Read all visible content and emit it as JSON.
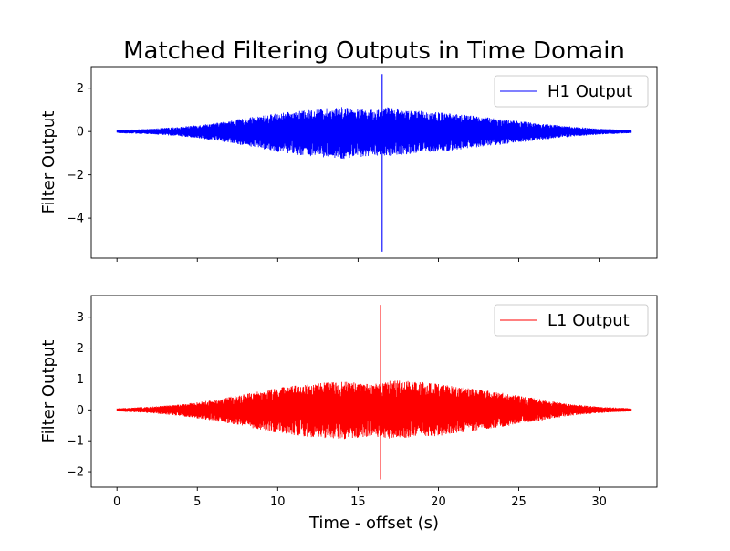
{
  "figure": {
    "title": "Matched Filtering Outputs in Time Domain"
  },
  "chart_data": [
    {
      "type": "line",
      "title": "",
      "xlabel": "",
      "ylabel": "Filter Output",
      "xlim": [
        -1.6,
        33.6
      ],
      "ylim": [
        -5.85,
        3.0
      ],
      "xticks": [
        0,
        5,
        10,
        15,
        20,
        25,
        30
      ],
      "yticks": [
        -4,
        -2,
        0,
        2
      ],
      "ytick_labels": [
        "−4",
        "−2",
        "0",
        "2"
      ],
      "show_xtick_labels": false,
      "grid": false,
      "legend": {
        "placement": "top-right",
        "entries": [
          "H1 Output"
        ]
      },
      "series": [
        {
          "name": "H1 Output",
          "color": "#0000ff",
          "envelope": {
            "x": [
              0,
              2,
              4,
              6,
              8,
              10,
              12,
              14,
              15,
              16,
              17,
              18,
              20,
              22,
              24,
              26,
              28,
              30,
              32
            ],
            "max": [
              0.07,
              0.12,
              0.22,
              0.38,
              0.62,
              0.85,
              1.0,
              1.15,
              1.05,
              1.0,
              1.15,
              1.0,
              0.9,
              0.75,
              0.58,
              0.4,
              0.25,
              0.13,
              0.07
            ],
            "min": [
              -0.07,
              -0.12,
              -0.22,
              -0.4,
              -0.65,
              -0.95,
              -1.15,
              -1.3,
              -1.2,
              -1.1,
              -1.15,
              -1.05,
              -0.95,
              -0.78,
              -0.6,
              -0.42,
              -0.26,
              -0.14,
              -0.07
            ]
          },
          "spike": {
            "x": 16.5,
            "max": 2.65,
            "min": -5.55
          }
        }
      ]
    },
    {
      "type": "line",
      "title": "",
      "xlabel": "Time - offset (s)",
      "ylabel": "Filter Output",
      "xlim": [
        -1.6,
        33.6
      ],
      "ylim": [
        -2.5,
        3.7
      ],
      "xticks": [
        0,
        5,
        10,
        15,
        20,
        25,
        30
      ],
      "xtick_labels": [
        "0",
        "5",
        "10",
        "15",
        "20",
        "25",
        "30"
      ],
      "yticks": [
        -2,
        -1,
        0,
        1,
        2,
        3
      ],
      "ytick_labels": [
        "−2",
        "−1",
        "0",
        "1",
        "2",
        "3"
      ],
      "show_xtick_labels": true,
      "grid": false,
      "legend": {
        "placement": "top-right",
        "entries": [
          "L1 Output"
        ]
      },
      "series": [
        {
          "name": "L1 Output",
          "color": "#ff0000",
          "envelope": {
            "x": [
              0,
              2,
              4,
              6,
              8,
              10,
              12,
              14,
              15,
              16,
              17,
              18,
              20,
              22,
              24,
              26,
              28,
              30,
              32
            ],
            "max": [
              0.05,
              0.1,
              0.18,
              0.32,
              0.52,
              0.72,
              0.85,
              0.92,
              0.88,
              0.85,
              0.95,
              0.95,
              0.85,
              0.7,
              0.55,
              0.38,
              0.2,
              0.1,
              0.05
            ],
            "min": [
              -0.05,
              -0.1,
              -0.2,
              -0.35,
              -0.55,
              -0.75,
              -0.88,
              -0.95,
              -0.9,
              -0.88,
              -0.95,
              -0.9,
              -0.85,
              -0.72,
              -0.55,
              -0.38,
              -0.2,
              -0.1,
              -0.05
            ]
          },
          "spike": {
            "x": 16.4,
            "max": 3.4,
            "min": -2.25
          }
        }
      ]
    }
  ]
}
